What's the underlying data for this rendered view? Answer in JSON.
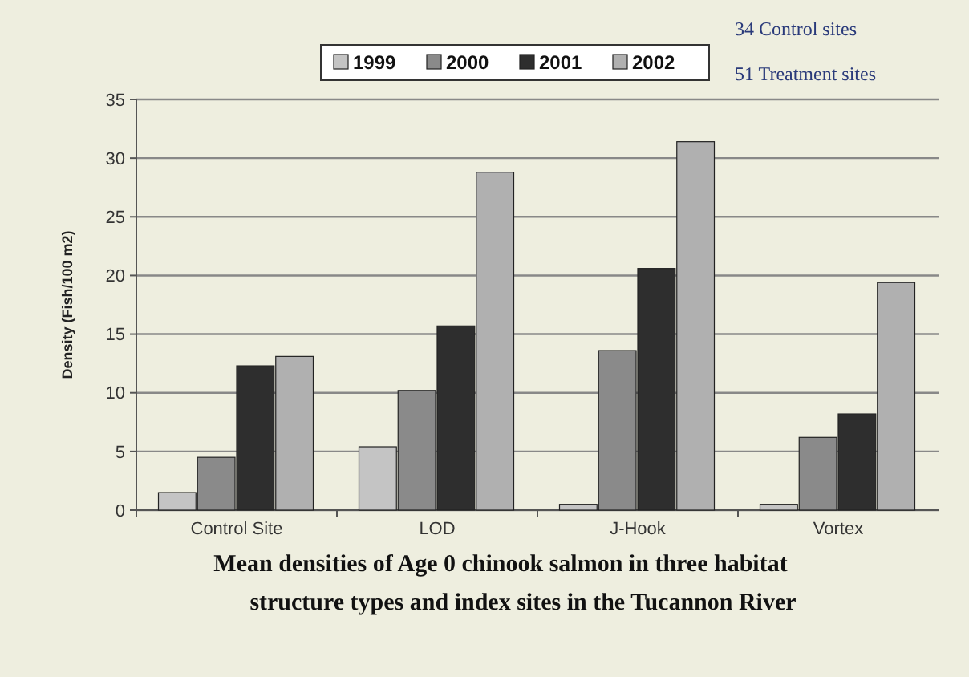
{
  "chart_data": {
    "type": "bar",
    "title": "Mean densities of Age 0 chinook salmon in three habitat structure types and index sites in the Tucannon River",
    "ylabel": "Density (Fish/100 m2)",
    "annotations": [
      "34 Control sites",
      "51 Treatment sites"
    ],
    "categories": [
      "Control Site",
      "LOD",
      "J-Hook",
      "Vortex"
    ],
    "series": [
      {
        "name": "1999",
        "color": "#c4c4c4",
        "values": [
          1.5,
          5.4,
          0.5,
          0.5
        ]
      },
      {
        "name": "2000",
        "color": "#8a8a8a",
        "values": [
          4.5,
          10.2,
          13.6,
          6.2
        ]
      },
      {
        "name": "2001",
        "color": "#2e2e2e",
        "values": [
          12.3,
          15.7,
          20.6,
          8.2
        ]
      },
      {
        "name": "2002",
        "color": "#b0b0b0",
        "values": [
          13.1,
          28.8,
          31.4,
          19.4
        ]
      }
    ],
    "ylim": [
      0,
      35
    ],
    "yticks": [
      0,
      5,
      10,
      15,
      20,
      25,
      30,
      35
    ],
    "grid": "y",
    "legend": "top"
  }
}
